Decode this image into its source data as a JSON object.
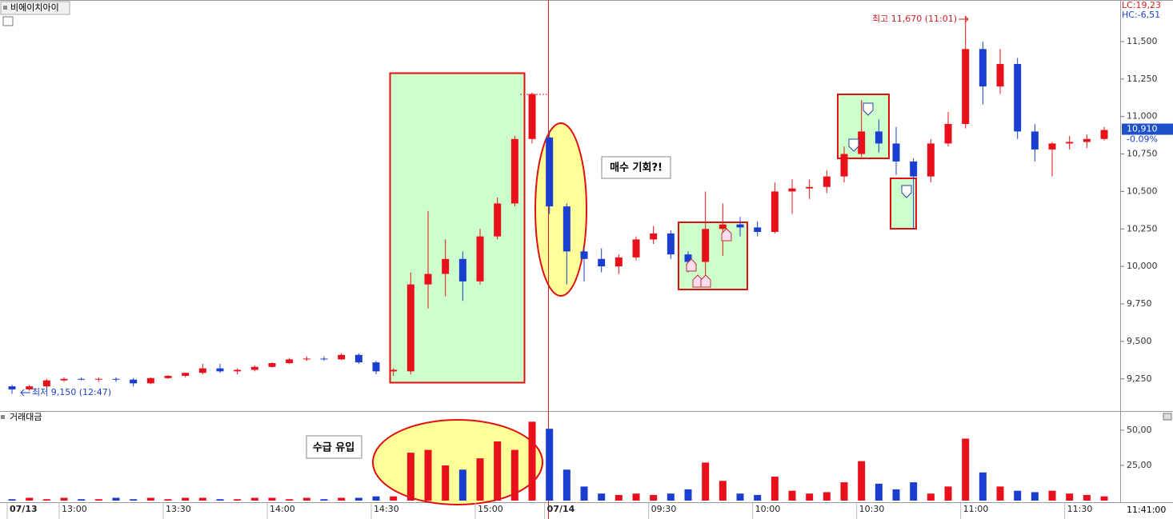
{
  "header": {
    "symbol": "비에이치아이"
  },
  "cursor_time": "11:41:00",
  "chart_data": [
    {
      "type": "candlestick",
      "categories": [
        "07/13",
        null,
        null,
        "13:00",
        null,
        null,
        null,
        null,
        null,
        "13:30",
        null,
        null,
        null,
        null,
        null,
        "14:00",
        null,
        null,
        null,
        null,
        null,
        "14:30",
        null,
        null,
        null,
        null,
        null,
        "15:00",
        null,
        null,
        null,
        "07/14",
        null,
        null,
        null,
        null,
        null,
        "09:30",
        null,
        null,
        null,
        null,
        null,
        "10:00",
        null,
        null,
        null,
        null,
        null,
        "10:30",
        null,
        null,
        null,
        null,
        null,
        "11:00",
        null,
        null,
        null,
        null,
        null,
        "11:30",
        null,
        null
      ],
      "open": [
        9200,
        9180,
        9200,
        9240,
        9250,
        9245,
        9250,
        9245,
        9220,
        9255,
        9270,
        9290,
        9320,
        9300,
        9310,
        9330,
        9355,
        9380,
        9385,
        9380,
        9410,
        9360,
        9300,
        9300,
        9880,
        9950,
        10050,
        9900,
        10200,
        10420,
        10850,
        10860,
        10400,
        10100,
        10050,
        10000,
        10060,
        10180,
        10220,
        10080,
        10030,
        10250,
        10280,
        10260,
        10230,
        10500,
        10520,
        10530,
        10600,
        10750,
        10900,
        10820,
        10700,
        10600,
        10820,
        10950,
        11450,
        11200,
        11350,
        10900,
        10780,
        10820,
        10830,
        10850
      ],
      "high": [
        9210,
        9210,
        9250,
        9260,
        9260,
        9260,
        9260,
        9255,
        9260,
        9275,
        9290,
        9350,
        9350,
        9320,
        9340,
        9360,
        9390,
        9400,
        9400,
        9420,
        9420,
        9370,
        9320,
        9960,
        10370,
        10180,
        10100,
        10250,
        10460,
        10870,
        11160,
        10890,
        10420,
        10130,
        10120,
        10080,
        10200,
        10270,
        10240,
        10100,
        10500,
        10420,
        10330,
        10300,
        10560,
        10580,
        10580,
        10640,
        10800,
        11110,
        10980,
        10930,
        10720,
        10850,
        11030,
        11670,
        11500,
        11450,
        11390,
        10950,
        10830,
        10870,
        10880,
        10930
      ],
      "low": [
        9150,
        9170,
        9190,
        9230,
        9240,
        9230,
        9230,
        9200,
        9215,
        9250,
        9260,
        9280,
        9290,
        9280,
        9300,
        9325,
        9350,
        9370,
        9370,
        9375,
        9350,
        9280,
        9270,
        9280,
        9720,
        9800,
        9770,
        9880,
        10180,
        10400,
        10820,
        10350,
        9880,
        9900,
        9960,
        9950,
        10040,
        10150,
        10050,
        9960,
        9880,
        10070,
        10200,
        10200,
        10220,
        10350,
        10450,
        10490,
        10560,
        10730,
        10760,
        10610,
        10250,
        10560,
        10800,
        10920,
        11080,
        11150,
        10850,
        10700,
        10600,
        10780,
        10790,
        10840
      ],
      "close": [
        9180,
        9200,
        9240,
        9250,
        9245,
        9250,
        9245,
        9220,
        9255,
        9270,
        9290,
        9320,
        9300,
        9310,
        9330,
        9355,
        9380,
        9385,
        9380,
        9410,
        9360,
        9300,
        9310,
        9880,
        9950,
        10050,
        9900,
        10200,
        10420,
        10850,
        11150,
        10400,
        10100,
        10050,
        10000,
        10060,
        10180,
        10220,
        10080,
        10030,
        10250,
        10280,
        10260,
        10230,
        10500,
        10520,
        10530,
        10600,
        10750,
        10900,
        10820,
        10700,
        10600,
        10820,
        10950,
        11450,
        11200,
        11350,
        10900,
        10780,
        10820,
        10830,
        10850,
        10910
      ],
      "up_color": "#e8101a",
      "down_color": "#1a3fd0",
      "ylim": [
        9030,
        11777
      ],
      "yticks": [
        {
          "value": 9250,
          "label": "9,250"
        },
        {
          "value": 9500,
          "label": "9,500"
        },
        {
          "value": 9750,
          "label": "9,750"
        },
        {
          "value": 10000,
          "label": "10,000"
        },
        {
          "value": 10250,
          "label": "10,250"
        },
        {
          "value": 10500,
          "label": "10,500"
        },
        {
          "value": 10750,
          "label": "10,750"
        },
        {
          "value": 11000,
          "label": "11,000"
        },
        {
          "value": 11250,
          "label": "11,250"
        },
        {
          "value": 11500,
          "label": "11,500"
        }
      ],
      "grid": false,
      "last_price_label": "10,910",
      "change_label": "-0.09%",
      "lc_label": "LC:19,23",
      "hc_label": "HC:-6,51",
      "high_label": "최고 11,670 (11:01)",
      "low_label": "최저 9,150 (12:47)",
      "annotation": "매수 기회?!"
    },
    {
      "type": "bar",
      "title": "거래대금",
      "values": [
        1,
        2,
        1,
        2,
        1,
        1,
        2,
        1,
        2,
        1,
        2,
        2,
        1,
        1,
        2,
        2,
        1,
        2,
        1,
        2,
        2,
        3,
        3,
        34,
        36,
        25,
        22,
        30,
        42,
        36,
        56,
        51,
        22,
        10,
        5,
        4,
        5,
        4,
        5,
        8,
        27,
        14,
        5,
        4,
        17,
        7,
        5,
        6,
        13,
        28,
        12,
        8,
        13,
        5,
        10,
        44,
        20,
        10,
        7,
        6,
        7,
        5,
        4,
        3
      ],
      "ylim": [
        0,
        63
      ],
      "yticks": [
        {
          "value": 25,
          "label": "25,00"
        },
        {
          "value": 50,
          "label": "50,00"
        }
      ],
      "annotation": "수급 유입"
    }
  ]
}
